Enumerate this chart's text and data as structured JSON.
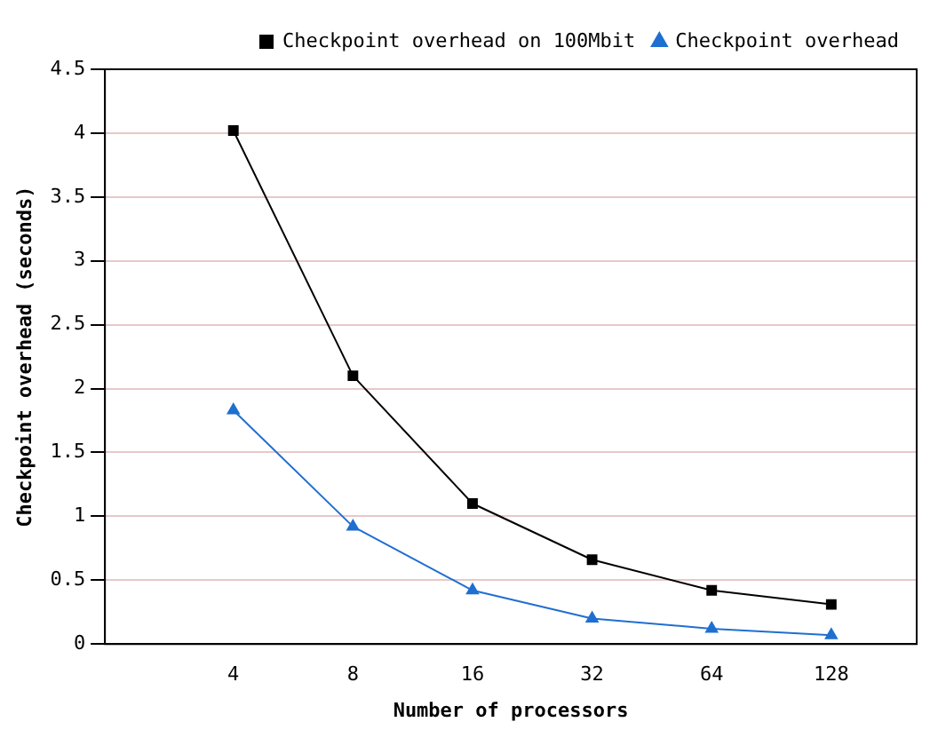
{
  "chart_data": {
    "type": "line",
    "xlabel": "Number of processors",
    "ylabel": "Checkpoint overhead (seconds)",
    "x": [
      4,
      8,
      16,
      32,
      64,
      128
    ],
    "log": "x",
    "xlim": [
      1.9,
      210
    ],
    "xticks": [
      4,
      8,
      16,
      32,
      64,
      128
    ],
    "ylim": [
      0,
      4.5
    ],
    "yticks": [
      0,
      0.5,
      1,
      1.5,
      2,
      2.5,
      3,
      3.5,
      4,
      4.5
    ],
    "grid": "y",
    "legend": "top right",
    "series": [
      {
        "name": "Checkpoint overhead on 100Mbit",
        "color": "#000000",
        "marker": "square",
        "values": [
          4.02,
          2.1,
          1.1,
          0.66,
          0.42,
          0.31
        ]
      },
      {
        "name": "Checkpoint overhead",
        "color": "#1f6fd0",
        "marker": "triangle",
        "values": [
          1.83,
          0.92,
          0.42,
          0.2,
          0.12,
          0.07
        ]
      }
    ]
  }
}
